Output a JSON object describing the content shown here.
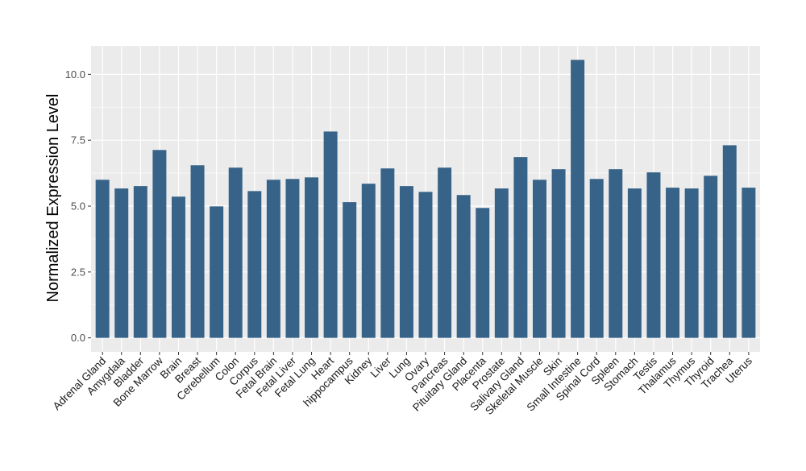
{
  "chart_data": {
    "type": "bar",
    "title": "",
    "xlabel": "",
    "ylabel": "Normalized Expression Level",
    "ylim": [
      -0.53,
      11.08
    ],
    "yticks": [
      0.0,
      2.5,
      5.0,
      7.5,
      10.0
    ],
    "ytick_labels": [
      "0.0",
      "2.5",
      "5.0",
      "7.5",
      "10.0"
    ],
    "grid": true,
    "bar_color": "#376389",
    "panel_color": "#EBEBEB",
    "categories": [
      "Adrenal Gland",
      "Amygdala",
      "Bladder",
      "Bone Marrow",
      "Brain",
      "Breast",
      "Cerebellum",
      "Colon",
      "Corpus",
      "Fetal Brain",
      "Fetal Liver",
      "Fetal Lung",
      "Heart",
      "hippocampus",
      "Kidney",
      "Liver",
      "Lung",
      "Ovary",
      "Pancreas",
      "Pituitary Gland",
      "Placenta",
      "Prostate",
      "Salivary Gland",
      "Skeletal Muscle",
      "Skin",
      "Small Intestine",
      "Spinal Cord",
      "Spleen",
      "Stomach",
      "Testis",
      "Thalamus",
      "Thymus",
      "Thyroid",
      "Trachea",
      "Uterus"
    ],
    "values": [
      6.0,
      5.67,
      5.76,
      7.13,
      5.36,
      6.55,
      4.99,
      6.46,
      5.57,
      6.0,
      6.03,
      6.09,
      7.83,
      5.15,
      5.85,
      6.43,
      5.76,
      5.54,
      6.46,
      5.42,
      4.93,
      5.67,
      6.86,
      6.0,
      6.4,
      10.55,
      6.03,
      6.4,
      5.67,
      6.28,
      5.7,
      5.67,
      6.15,
      7.31,
      5.7
    ]
  }
}
